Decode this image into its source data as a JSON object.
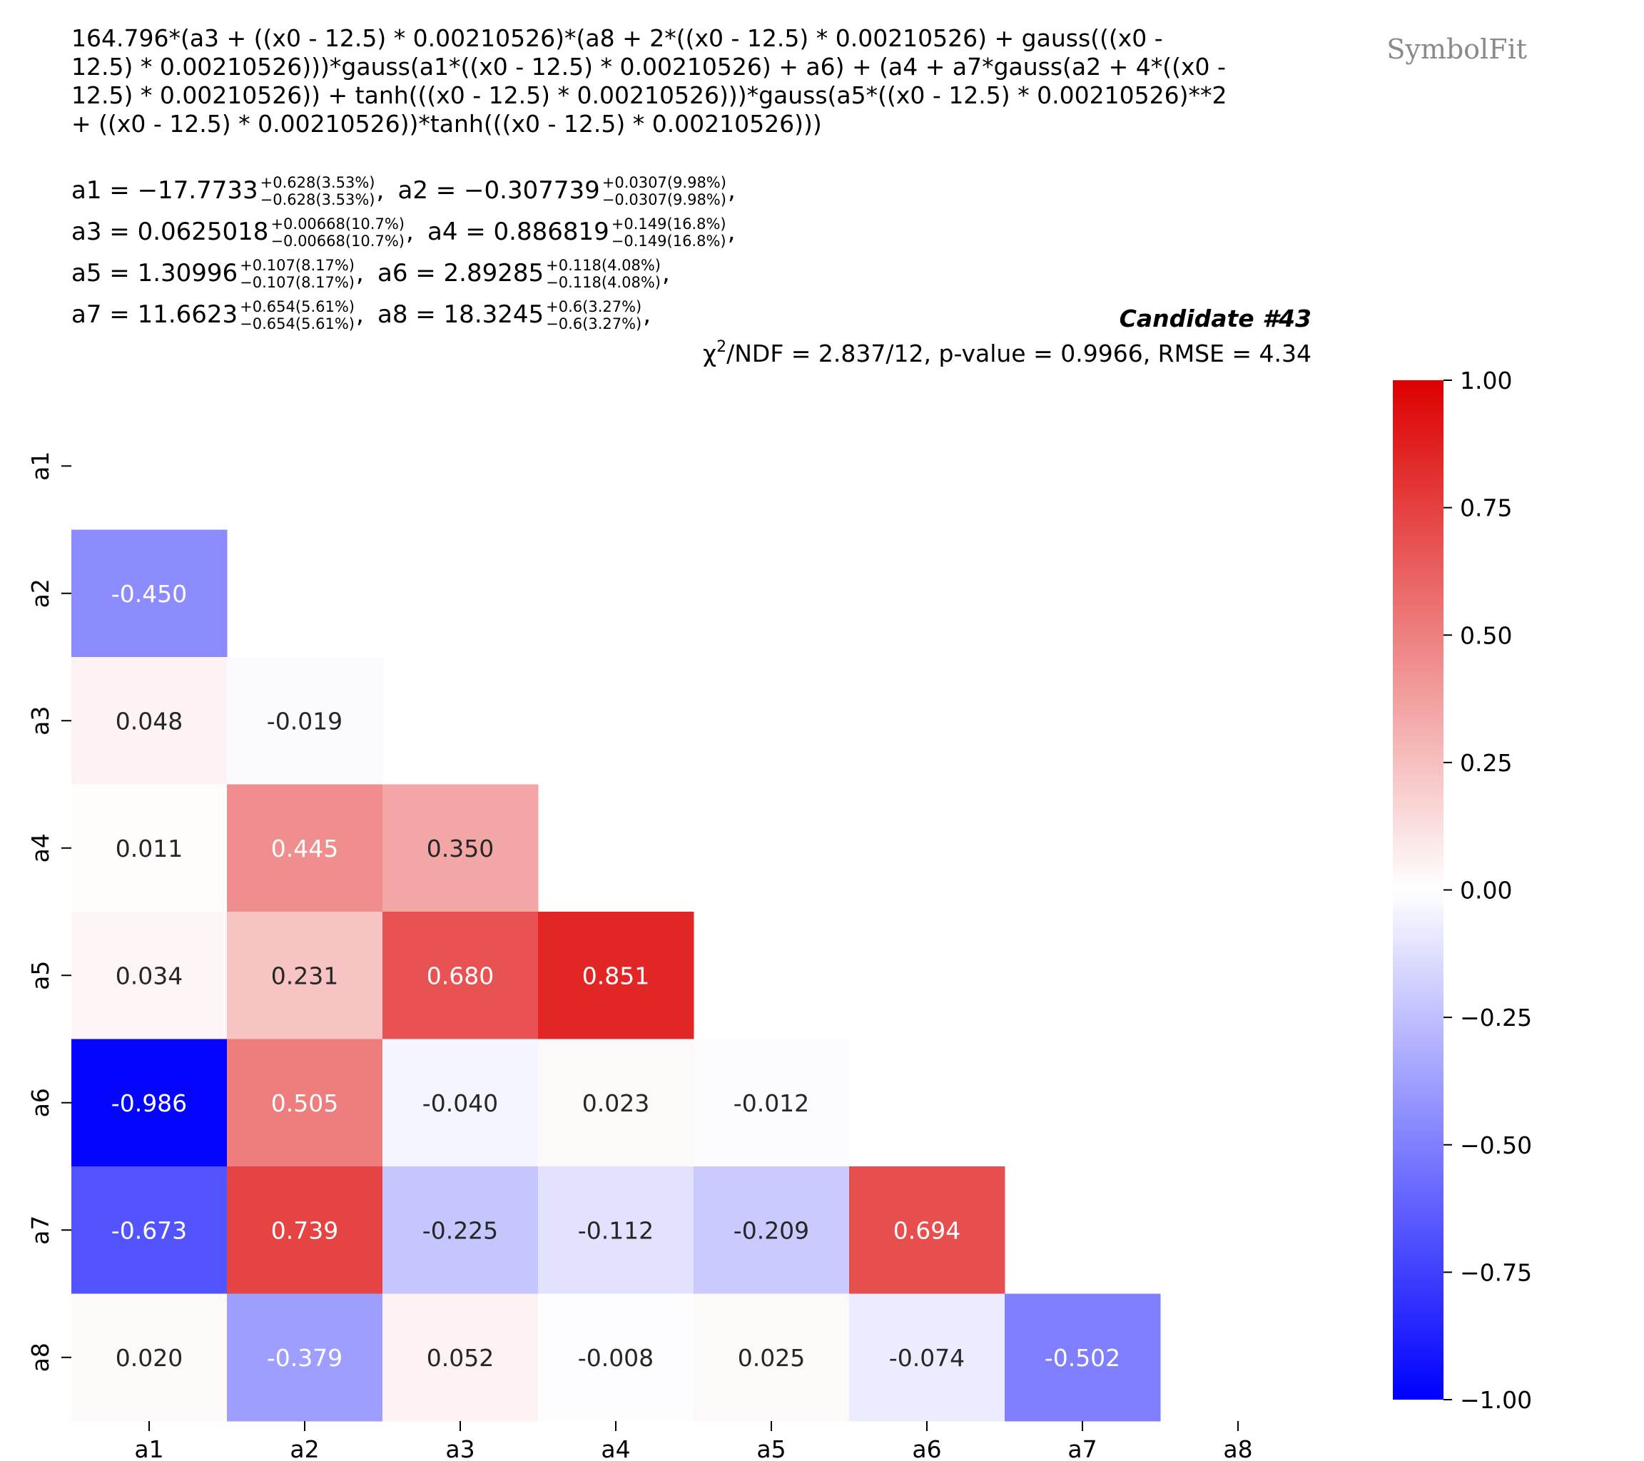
{
  "brand": "SymbolFit",
  "expression_lines": [
    "164.796*(a3 + ((x0 - 12.5) * 0.00210526)*(a8 + 2*((x0 - 12.5) * 0.00210526) + gauss(((x0 -",
    "12.5) * 0.00210526)))*gauss(a1*((x0 - 12.5) * 0.00210526) + a6) + (a4 + a7*gauss(a2 + 4*((x0 -",
    "12.5) * 0.00210526)) + tanh(((x0 - 12.5) * 0.00210526)))*gauss(a5*((x0 - 12.5) * 0.00210526)**2",
    "+ ((x0 - 12.5) * 0.00210526))*tanh(((x0 - 12.5) * 0.00210526)))"
  ],
  "params": [
    {
      "name": "a1",
      "value": "−17.7733",
      "up": "+0.628(3.53%)",
      "down": "−0.628(3.53%)"
    },
    {
      "name": "a2",
      "value": "−0.307739",
      "up": "+0.0307(9.98%)",
      "down": "−0.0307(9.98%)"
    },
    {
      "name": "a3",
      "value": "0.0625018",
      "up": "+0.00668(10.7%)",
      "down": "−0.00668(10.7%)"
    },
    {
      "name": "a4",
      "value": "0.886819",
      "up": "+0.149(16.8%)",
      "down": "−0.149(16.8%)"
    },
    {
      "name": "a5",
      "value": "1.30996",
      "up": "+0.107(8.17%)",
      "down": "−0.107(8.17%)"
    },
    {
      "name": "a6",
      "value": "2.89285",
      "up": "+0.118(4.08%)",
      "down": "−0.118(4.08%)"
    },
    {
      "name": "a7",
      "value": "11.6623",
      "up": "+0.654(5.61%)",
      "down": "−0.654(5.61%)"
    },
    {
      "name": "a8",
      "value": "18.3245",
      "up": "+0.6(3.27%)",
      "down": "−0.6(3.27%)"
    }
  ],
  "candidate": "Candidate #43",
  "stats": {
    "chi": "χ",
    "chi_sup": "2",
    "rest": "/NDF = 2.837/12, p-value = 0.9966, RMSE = 4.34"
  },
  "colors": {
    "neg": "#0000ff",
    "mid": "#ffffff",
    "pos": "#dd0000"
  },
  "chart_data": {
    "type": "heatmap",
    "title": "Candidate #43",
    "row_labels": [
      "a1",
      "a2",
      "a3",
      "a4",
      "a5",
      "a6",
      "a7",
      "a8"
    ],
    "col_labels": [
      "a1",
      "a2",
      "a3",
      "a4",
      "a5",
      "a6",
      "a7",
      "a8"
    ],
    "cells": [
      {
        "row": "a2",
        "col": "a1",
        "value": -0.45,
        "label": "-0.450"
      },
      {
        "row": "a3",
        "col": "a1",
        "value": 0.048,
        "label": "0.048"
      },
      {
        "row": "a3",
        "col": "a2",
        "value": -0.019,
        "label": "-0.019"
      },
      {
        "row": "a4",
        "col": "a1",
        "value": 0.011,
        "label": "0.011"
      },
      {
        "row": "a4",
        "col": "a2",
        "value": 0.445,
        "label": "0.445"
      },
      {
        "row": "a4",
        "col": "a3",
        "value": 0.35,
        "label": "0.350"
      },
      {
        "row": "a5",
        "col": "a1",
        "value": 0.034,
        "label": "0.034"
      },
      {
        "row": "a5",
        "col": "a2",
        "value": 0.231,
        "label": "0.231"
      },
      {
        "row": "a5",
        "col": "a3",
        "value": 0.68,
        "label": "0.680"
      },
      {
        "row": "a5",
        "col": "a4",
        "value": 0.851,
        "label": "0.851"
      },
      {
        "row": "a6",
        "col": "a1",
        "value": -0.986,
        "label": "-0.986"
      },
      {
        "row": "a6",
        "col": "a2",
        "value": 0.505,
        "label": "0.505"
      },
      {
        "row": "a6",
        "col": "a3",
        "value": -0.04,
        "label": "-0.040"
      },
      {
        "row": "a6",
        "col": "a4",
        "value": 0.023,
        "label": "0.023"
      },
      {
        "row": "a6",
        "col": "a5",
        "value": -0.012,
        "label": "-0.012"
      },
      {
        "row": "a7",
        "col": "a1",
        "value": -0.673,
        "label": "-0.673"
      },
      {
        "row": "a7",
        "col": "a2",
        "value": 0.739,
        "label": "0.739"
      },
      {
        "row": "a7",
        "col": "a3",
        "value": -0.225,
        "label": "-0.225"
      },
      {
        "row": "a7",
        "col": "a4",
        "value": -0.112,
        "label": "-0.112"
      },
      {
        "row": "a7",
        "col": "a5",
        "value": -0.209,
        "label": "-0.209"
      },
      {
        "row": "a7",
        "col": "a6",
        "value": 0.694,
        "label": "0.694"
      },
      {
        "row": "a8",
        "col": "a1",
        "value": 0.02,
        "label": "0.020"
      },
      {
        "row": "a8",
        "col": "a2",
        "value": -0.379,
        "label": "-0.379"
      },
      {
        "row": "a8",
        "col": "a3",
        "value": 0.052,
        "label": "0.052"
      },
      {
        "row": "a8",
        "col": "a4",
        "value": -0.008,
        "label": "-0.008"
      },
      {
        "row": "a8",
        "col": "a5",
        "value": 0.025,
        "label": "0.025"
      },
      {
        "row": "a8",
        "col": "a6",
        "value": -0.074,
        "label": "-0.074"
      },
      {
        "row": "a8",
        "col": "a7",
        "value": -0.502,
        "label": "-0.502"
      }
    ],
    "colorbar": {
      "range": [
        -1.0,
        1.0
      ],
      "ticks": [
        1.0,
        0.75,
        0.5,
        0.25,
        0.0,
        -0.25,
        -0.5,
        -0.75,
        -1.0
      ],
      "tick_labels": [
        "1.00",
        "0.75",
        "0.50",
        "0.25",
        "0.00",
        "−0.25",
        "−0.50",
        "−0.75",
        "−1.00"
      ]
    }
  }
}
